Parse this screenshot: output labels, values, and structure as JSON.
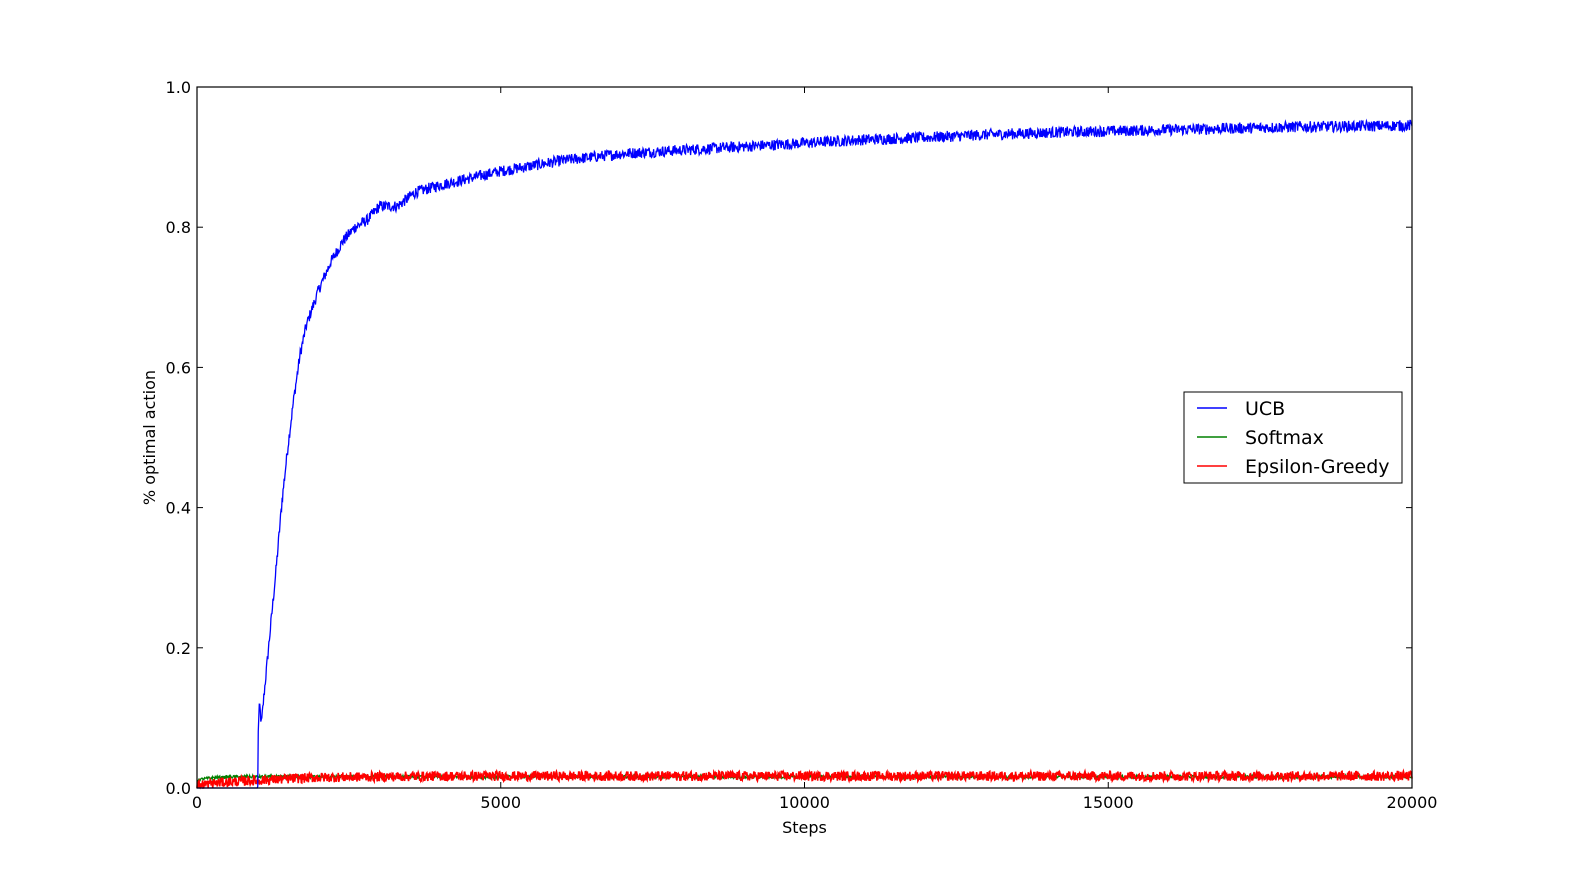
{
  "chart_data": {
    "type": "line",
    "title": "",
    "xlabel": "Steps",
    "ylabel": "% optimal action",
    "xlim": [
      0,
      20000
    ],
    "ylim": [
      0.0,
      1.0
    ],
    "x_ticks": [
      0,
      5000,
      10000,
      15000,
      20000
    ],
    "x_tick_labels": [
      "0",
      "5000",
      "10000",
      "15000",
      "20000"
    ],
    "y_ticks": [
      0.0,
      0.2,
      0.4,
      0.6,
      0.8,
      1.0
    ],
    "y_tick_labels": [
      "0.0",
      "0.2",
      "0.4",
      "0.6",
      "0.8",
      "1.0"
    ],
    "grid": false,
    "legend_position": "center-right",
    "noise_amplitude": [
      0.008,
      0.002,
      0.007
    ],
    "series": [
      {
        "name": "UCB",
        "color": "#0000ff",
        "x": [
          0,
          1000,
          1000,
          1030,
          1060,
          1100,
          1200,
          1300,
          1400,
          1500,
          1600,
          1700,
          1800,
          2000,
          2200,
          2400,
          2600,
          2800,
          3000,
          3300,
          3600,
          4000,
          4500,
          5000,
          6000,
          7000,
          8000,
          9000,
          10000,
          11000,
          12000,
          13000,
          14000,
          15000,
          16000,
          17000,
          18000,
          19000,
          20000
        ],
        "y": [
          0.0,
          0.0,
          0.07,
          0.12,
          0.09,
          0.13,
          0.22,
          0.31,
          0.41,
          0.49,
          0.56,
          0.62,
          0.66,
          0.71,
          0.75,
          0.78,
          0.8,
          0.81,
          0.83,
          0.83,
          0.85,
          0.86,
          0.87,
          0.88,
          0.895,
          0.905,
          0.91,
          0.915,
          0.92,
          0.925,
          0.928,
          0.932,
          0.935,
          0.937,
          0.939,
          0.941,
          0.943,
          0.944,
          0.945
        ]
      },
      {
        "name": "Softmax",
        "color": "#008000",
        "x": [
          0,
          100,
          300,
          600,
          1000,
          1500,
          2000,
          3000,
          5000,
          10000,
          15000,
          20000
        ],
        "y": [
          0.011,
          0.013,
          0.015,
          0.016,
          0.016,
          0.016,
          0.016,
          0.016,
          0.016,
          0.016,
          0.016,
          0.016
        ]
      },
      {
        "name": "Epsilon-Greedy",
        "color": "#ff0000",
        "x": [
          0,
          300,
          600,
          1000,
          1500,
          2000,
          3000,
          4000,
          5000,
          10000,
          15000,
          20000
        ],
        "y": [
          0.004,
          0.007,
          0.009,
          0.011,
          0.013,
          0.015,
          0.016,
          0.017,
          0.017,
          0.017,
          0.017,
          0.017
        ]
      }
    ]
  }
}
